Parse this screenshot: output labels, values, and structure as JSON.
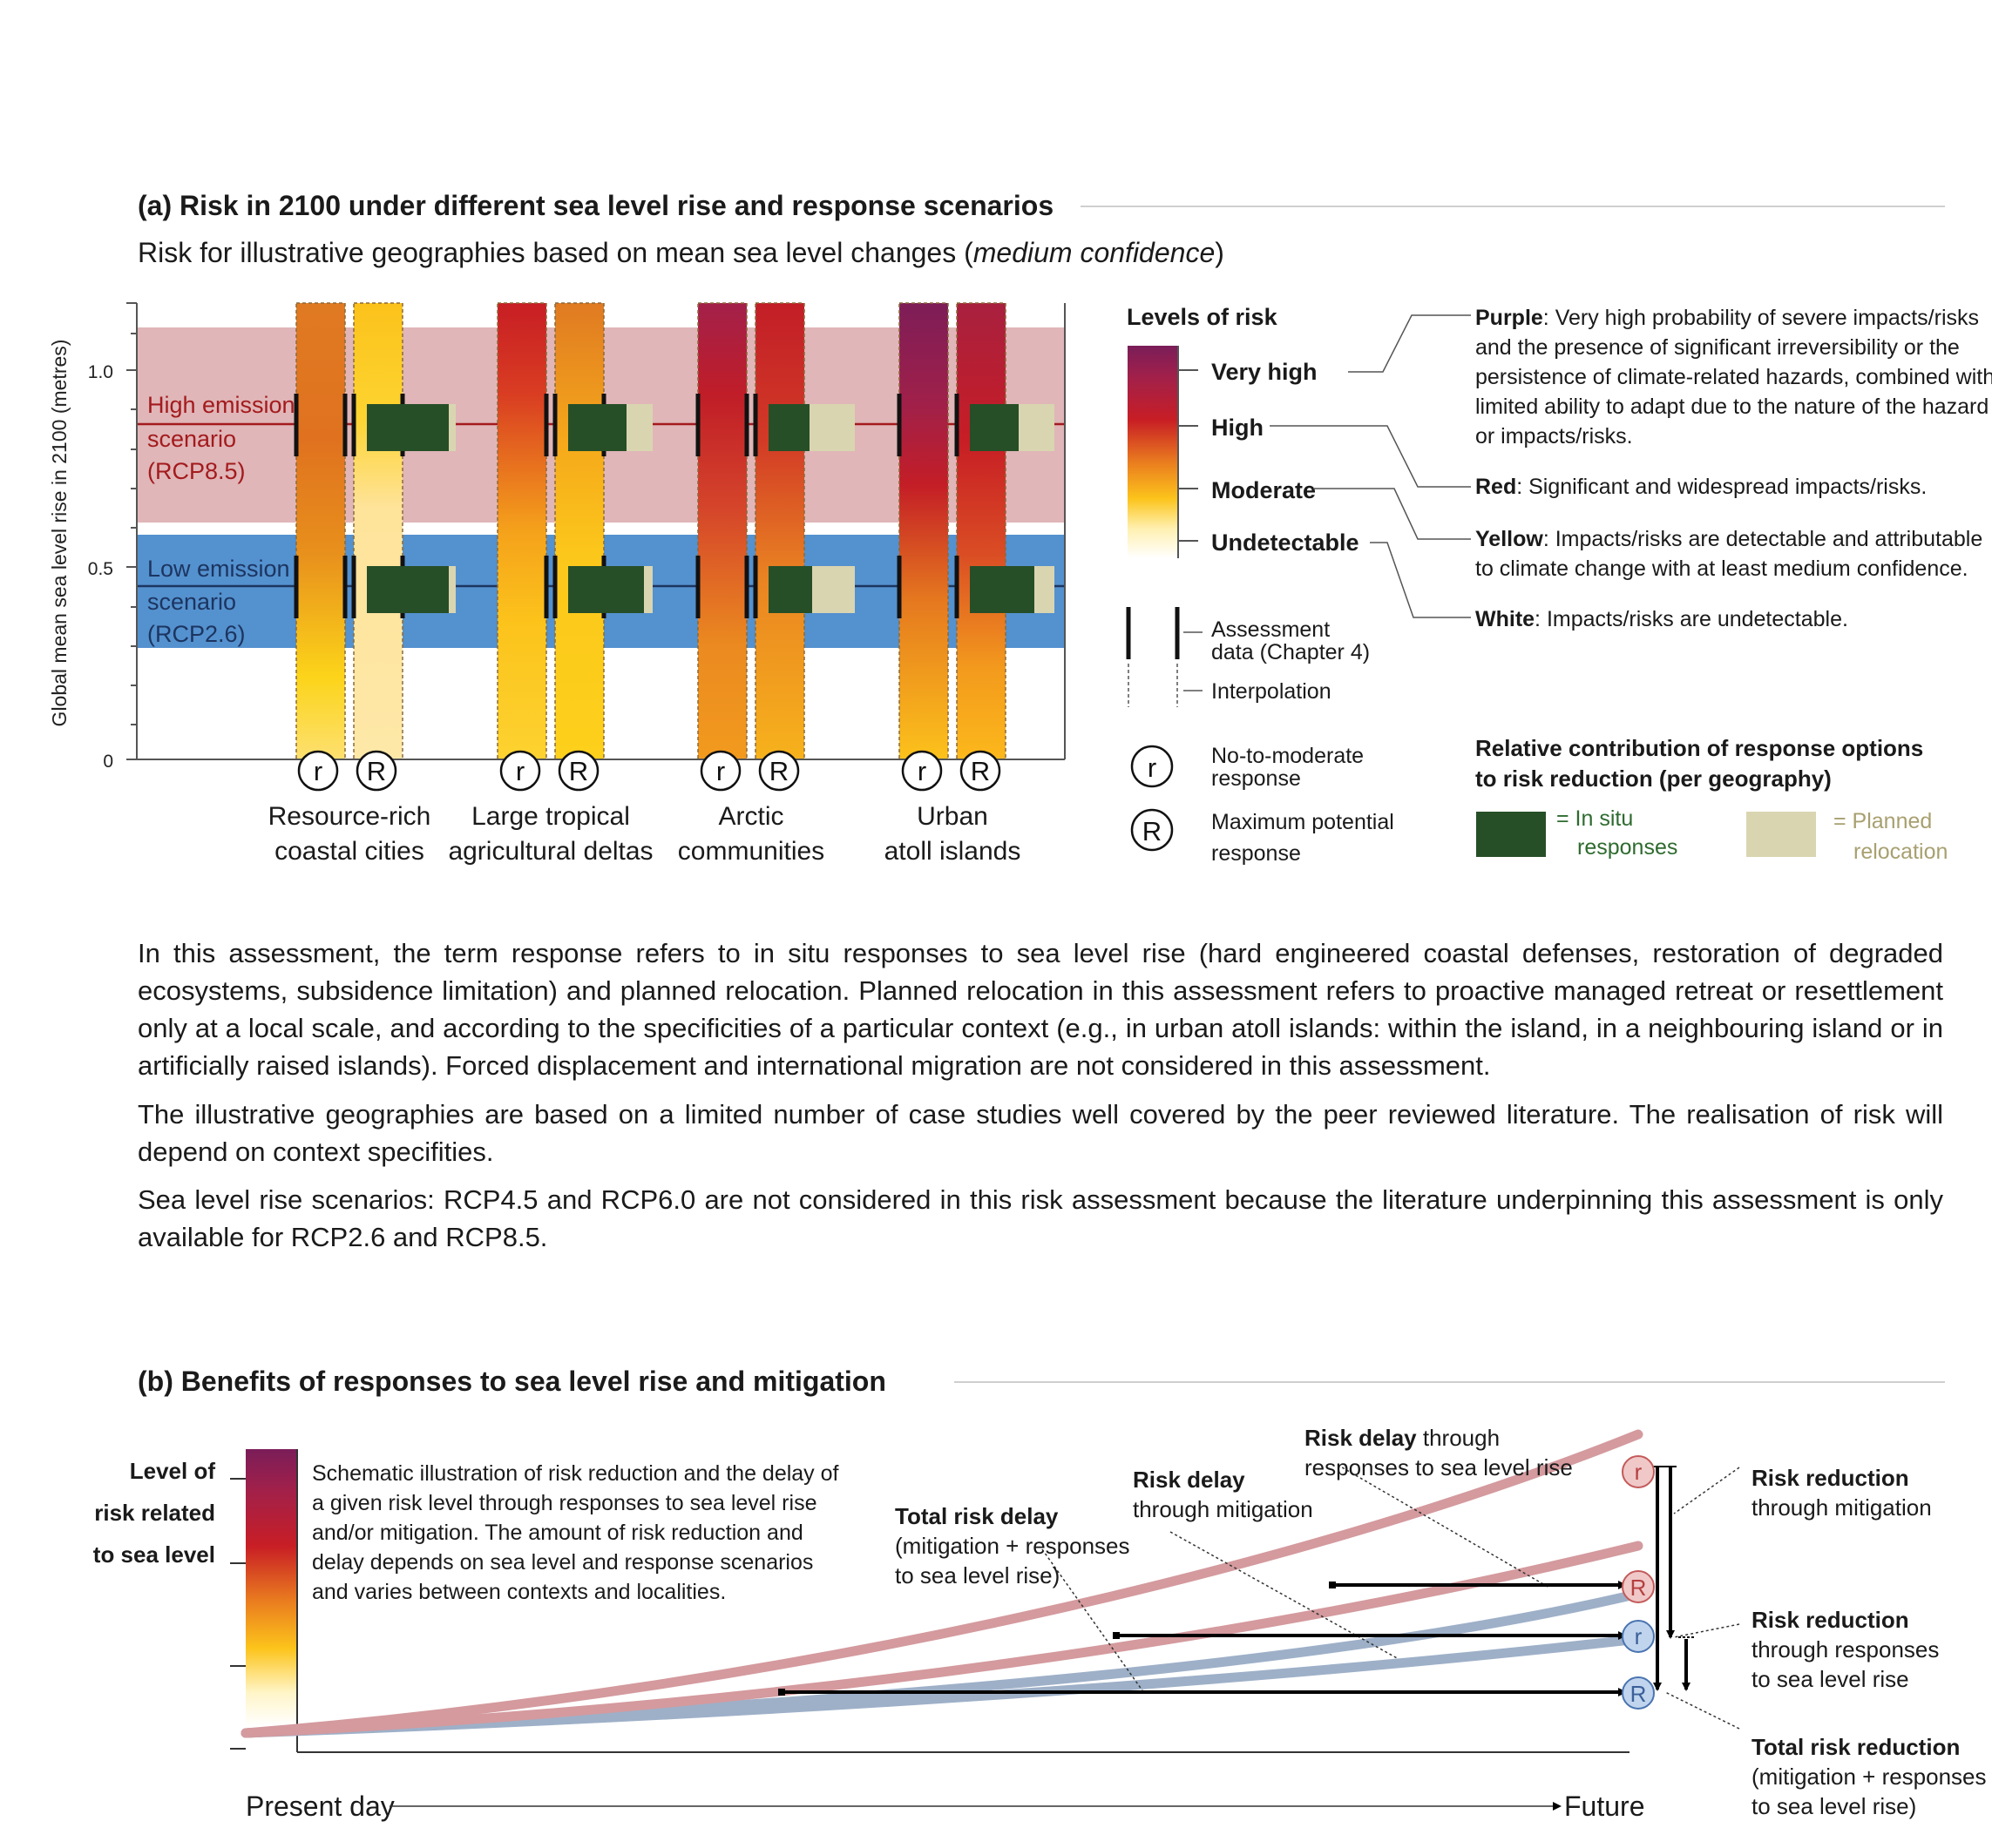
{
  "panel_a": {
    "title": "(a) Risk in 2100 under different sea level rise and response scenarios",
    "subtitle_pre": "Risk for illustrative geographies based on mean sea level changes (",
    "subtitle_em": "medium confidence",
    "subtitle_post": ")",
    "y_axis_label": "Global mean sea level rise in 2100 (metres)",
    "y_ticks": [
      "1.0",
      "0.5",
      "0"
    ],
    "high_scenario": [
      "High emission",
      "scenario",
      "(RCP8.5)"
    ],
    "low_scenario": [
      "Low emission",
      "scenario",
      "(RCP2.6)"
    ],
    "response_labels": {
      "low": "r",
      "max": "R"
    },
    "geographies": [
      {
        "name": [
          "Resource-rich",
          "coastal cities"
        ]
      },
      {
        "name": [
          "Large tropical",
          "agricultural deltas"
        ]
      },
      {
        "name": [
          "Arctic",
          "communities"
        ]
      },
      {
        "name": [
          "Urban",
          "atoll islands"
        ]
      }
    ]
  },
  "legend": {
    "levels_title": "Levels of risk",
    "levels": [
      "Very high",
      "High",
      "Moderate",
      "Undetectable"
    ],
    "descriptions": [
      {
        "key": "Purple",
        "lines": [
          ": Very high probability of severe impacts/risks",
          "and the presence of significant irreversibility or the",
          "persistence of climate-related hazards, combined with",
          "limited ability to adapt due to the nature of the hazard",
          "or impacts/risks."
        ]
      },
      {
        "key": "Red",
        "lines": [
          ": Significant and widespread impacts/risks."
        ]
      },
      {
        "key": "Yellow",
        "lines": [
          ": Impacts/risks are detectable and attributable",
          "to climate change with at least medium confidence."
        ]
      },
      {
        "key": "White",
        "lines": [
          ": Impacts/risks are undetectable."
        ]
      }
    ],
    "assessment_data": [
      "Assessment",
      "data (Chapter 4)"
    ],
    "interpolation": "Interpolation",
    "no_to_moderate": [
      "No-to-moderate",
      "response"
    ],
    "maximum_potential": [
      "Maximum potential",
      "response"
    ],
    "contribution_title": [
      "Relative contribution of response options",
      "to risk reduction (per geography)"
    ],
    "in_situ": [
      "= In situ",
      "responses"
    ],
    "planned": [
      "= Planned",
      "relocation"
    ]
  },
  "paragraphs": [
    "In this assessment, the term response refers to in situ responses to sea level rise (hard engineered coastal defenses, restoration of degraded ecosystems, subsidence limitation) and planned relocation. Planned relocation in this assessment refers to proactive managed retreat or resettlement only at a local scale, and according to the specificities of a particular context (e.g., in urban atoll islands: within the island, in a neighbouring island or in artificially raised islands). Forced displacement and international migration are not considered in this assessment.",
    "The illustrative geographies are based on a limited number of case studies well covered by the peer reviewed literature. The realisation of risk will depend on context specifities.",
    "Sea level rise scenarios: RCP4.5 and RCP6.0 are not considered in this risk assessment because the literature underpinning this assessment is only available for RCP2.6 and RCP8.5."
  ],
  "panel_b": {
    "title": "(b) Benefits of responses to sea level rise and mitigation",
    "y_label": [
      "Level of",
      "risk related",
      "to sea level"
    ],
    "schematic_text": [
      "Schematic illustration of risk reduction and the delay of",
      "a given risk level through responses to sea level rise",
      "and/or mitigation. The amount of risk reduction and",
      "delay depends on sea level and response scenarios",
      "and varies between contexts and localities."
    ],
    "total_risk_delay": {
      "bold": "Total risk delay",
      "lines": [
        "(mitigation + responses",
        "to sea level rise)"
      ]
    },
    "risk_delay_mitigation": {
      "bold": "Risk delay",
      "lines": [
        "through mitigation"
      ]
    },
    "risk_delay_responses": {
      "bold": "Risk delay",
      "rest": " through",
      "lines": [
        "responses to sea level rise"
      ]
    },
    "risk_reduction_mitigation": {
      "bold": "Risk reduction",
      "lines": [
        "through mitigation"
      ]
    },
    "risk_reduction_responses": {
      "bold": "Risk reduction",
      "lines": [
        "through responses",
        "to sea level rise"
      ]
    },
    "total_risk_reduction": {
      "bold": "Total risk reduction",
      "lines": [
        "(mitigation + responses",
        "to sea level rise)"
      ]
    },
    "present_day": "Present day",
    "future": "Future",
    "curve_colors": {
      "high": "#d49a9e",
      "low": "#9eb0c8"
    }
  }
}
